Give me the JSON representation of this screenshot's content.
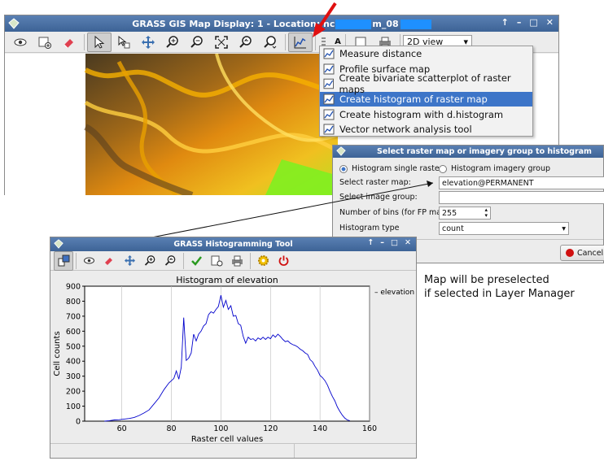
{
  "map_display": {
    "title_prefix": "GRASS GIS Map Display: 1  - Location: nc",
    "title_suffix": "m_08",
    "view_mode": "2D view",
    "extra_tool_text": "A"
  },
  "tool_menu": {
    "items": [
      {
        "label": "Measure distance",
        "icon": "ruler-icon",
        "selected": false
      },
      {
        "label": "Profile surface map",
        "icon": "profile-icon",
        "selected": false
      },
      {
        "label": "Create bivariate scatterplot of raster maps",
        "icon": "scatterplot-icon",
        "selected": false
      },
      {
        "label": "Create histogram of raster map",
        "icon": "histogram-icon",
        "selected": true
      },
      {
        "label": "Create histogram with d.histogram",
        "icon": "histogram-icon",
        "selected": false
      },
      {
        "label": "Vector network analysis tool",
        "icon": "network-icon",
        "selected": false
      }
    ]
  },
  "select_dialog": {
    "title": "Select raster map or imagery group to histogram",
    "radio_single": "Histogram single raster",
    "radio_group": "Histogram imagery group",
    "raster_label": "Select raster map:",
    "raster_value": "elevation@PERMANENT",
    "group_label": "Select image group:",
    "group_value": "",
    "bins_label": "Number of bins (for FP maps)",
    "bins_value": "255",
    "type_label": "Histogram type",
    "type_value": "count",
    "cancel_label": "Cancel"
  },
  "hist_window": {
    "title": "GRASS Histogramming Tool"
  },
  "annotation": {
    "line1": "Map will be preselected",
    "line2": "if selected in Layer Manager"
  },
  "chart_data": {
    "type": "line",
    "title": "Histogram of elevation",
    "xlabel": "Raster cell values",
    "ylabel": "Cell counts",
    "xlim": [
      45,
      160
    ],
    "ylim": [
      0,
      900
    ],
    "xticks": [
      60,
      80,
      100,
      120,
      140,
      160
    ],
    "yticks": [
      0,
      100,
      200,
      300,
      400,
      500,
      600,
      700,
      800,
      900
    ],
    "legend": "elevation",
    "series": [
      {
        "name": "elevation",
        "color": "#0000cc",
        "points": [
          [
            53,
            0
          ],
          [
            55,
            3
          ],
          [
            57,
            8
          ],
          [
            59,
            10
          ],
          [
            61,
            14
          ],
          [
            63,
            18
          ],
          [
            65,
            25
          ],
          [
            67,
            38
          ],
          [
            69,
            55
          ],
          [
            71,
            75
          ],
          [
            73,
            115
          ],
          [
            75,
            155
          ],
          [
            77,
            210
          ],
          [
            79,
            255
          ],
          [
            81,
            285
          ],
          [
            82,
            335
          ],
          [
            83,
            280
          ],
          [
            84,
            360
          ],
          [
            85,
            690
          ],
          [
            86,
            405
          ],
          [
            87,
            420
          ],
          [
            88,
            455
          ],
          [
            89,
            580
          ],
          [
            90,
            535
          ],
          [
            91,
            580
          ],
          [
            92,
            600
          ],
          [
            93,
            635
          ],
          [
            94,
            650
          ],
          [
            95,
            710
          ],
          [
            96,
            730
          ],
          [
            97,
            720
          ],
          [
            98,
            745
          ],
          [
            99,
            765
          ],
          [
            100,
            840
          ],
          [
            101,
            760
          ],
          [
            102,
            805
          ],
          [
            103,
            745
          ],
          [
            104,
            770
          ],
          [
            105,
            700
          ],
          [
            106,
            705
          ],
          [
            107,
            650
          ],
          [
            108,
            640
          ],
          [
            109,
            565
          ],
          [
            110,
            520
          ],
          [
            111,
            560
          ],
          [
            112,
            545
          ],
          [
            113,
            550
          ],
          [
            114,
            535
          ],
          [
            115,
            555
          ],
          [
            116,
            545
          ],
          [
            117,
            560
          ],
          [
            118,
            545
          ],
          [
            119,
            560
          ],
          [
            120,
            550
          ],
          [
            121,
            575
          ],
          [
            122,
            560
          ],
          [
            123,
            580
          ],
          [
            124,
            565
          ],
          [
            125,
            545
          ],
          [
            126,
            530
          ],
          [
            127,
            535
          ],
          [
            128,
            520
          ],
          [
            129,
            510
          ],
          [
            130,
            505
          ],
          [
            131,
            495
          ],
          [
            132,
            480
          ],
          [
            133,
            470
          ],
          [
            134,
            455
          ],
          [
            135,
            445
          ],
          [
            136,
            410
          ],
          [
            137,
            395
          ],
          [
            138,
            365
          ],
          [
            139,
            340
          ],
          [
            140,
            305
          ],
          [
            141,
            290
          ],
          [
            142,
            270
          ],
          [
            143,
            240
          ],
          [
            144,
            200
          ],
          [
            145,
            165
          ],
          [
            146,
            135
          ],
          [
            147,
            95
          ],
          [
            148,
            65
          ],
          [
            149,
            40
          ],
          [
            150,
            20
          ],
          [
            151,
            8
          ],
          [
            152,
            3
          ]
        ]
      }
    ]
  }
}
